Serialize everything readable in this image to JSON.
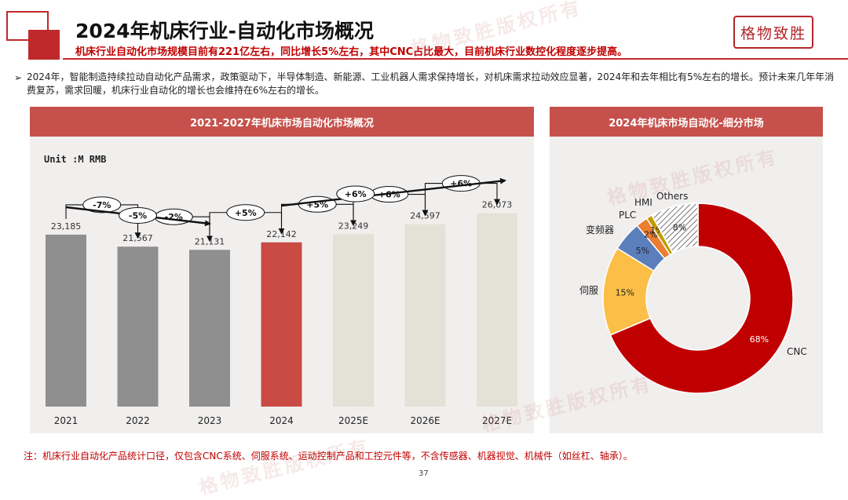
{
  "header": {
    "title": "2024年机床行业-自动化市场概况",
    "subtitle": "机床行业自动化市场规模目前有221亿左右，同比增长5%左右，其中CNC占比最大，目前机床行业数控化程度逐步提高。",
    "logo_text": "格物致胜",
    "watermark": "格物致胜版权所有"
  },
  "intro": "2024年，智能制造持续拉动自动化产品需求，政策驱动下，半导体制造、新能源、工业机器人需求保持增长，对机床需求拉动效应显著，2024年和去年相比有5%左右的增长。预计未来几年年消费复苏，需求回暖，机床行业自动化的增长也会维持在6%左右的增长。",
  "footnote": "注：机床行业自动化产品统计口径，仅包含CNC系统、伺服系统、运动控制产品和工控元件等，不含传感器、机器视觉、机械件（如丝杠、轴承）。",
  "page_number": "37",
  "colors": {
    "brand_red": "#c0292b",
    "bar_historic": "#8f8f8f",
    "bar_current": "#c94b44",
    "bar_forecast": "#e4e1d6",
    "cnc": "#c00000",
    "servo": "#fbbf47",
    "inverter": "#5b7fbd",
    "plc": "#ed7d31",
    "hmi": "#c59b00",
    "others": "#bdbdbd"
  },
  "chart_data": [
    {
      "type": "bar",
      "title": "2021-2027年机床市场自动化市场概况",
      "unit_label": "Unit :M RMB",
      "categories": [
        "2021",
        "2022",
        "2023",
        "2024",
        "2025E",
        "2026E",
        "2027E"
      ],
      "values": [
        23185,
        21567,
        21131,
        22142,
        23249,
        24597,
        26073
      ],
      "value_labels": [
        "23,185",
        "21,567",
        "21,131",
        "22,142",
        "23,249",
        "24,597",
        "26,073"
      ],
      "ylim": [
        0,
        40000
      ],
      "yoy_labels": [
        "-7%",
        "-2%",
        "+5%",
        "+5%",
        "+6%",
        "+6%"
      ],
      "trend_labels": [
        "-5%",
        "+6%"
      ],
      "grid": false
    },
    {
      "type": "pie",
      "title": "2024年机床市场自动化-细分市场",
      "donut": true,
      "slices": [
        {
          "name": "CNC",
          "value": 68,
          "label": "68%"
        },
        {
          "name": "伺服",
          "value": 15,
          "label": "15%"
        },
        {
          "name": "变频器",
          "value": 5,
          "label": "5%"
        },
        {
          "name": "PLC",
          "value": 2,
          "label": "2%"
        },
        {
          "name": "HMI",
          "value": 1,
          "label": "1%"
        },
        {
          "name": "Others",
          "value": 8,
          "label": "8%"
        }
      ]
    }
  ]
}
